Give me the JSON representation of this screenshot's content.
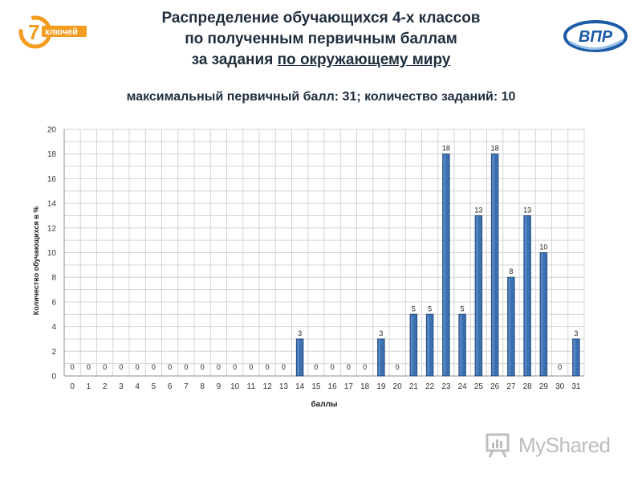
{
  "header": {
    "title_lines": [
      "Распределение обучающихся 4-х классов",
      "по полученным первичным баллам"
    ],
    "title_line3_prefix": "за задания ",
    "title_line3_underlined": "по окружающему миру",
    "subtitle": "максимальный первичный балл: 31; количество заданий: 10"
  },
  "logos": {
    "left_text": "ключей",
    "left_number": "7",
    "right_text": "ВПР",
    "watermark_text": "MyShared"
  },
  "colors": {
    "bar": "#3a6fb0",
    "bar_dark": "#2a4f80",
    "grid": "#d4d4d4",
    "logo_orange": "#f39c1f",
    "logo_blue": "#1b5aa6"
  },
  "chart_data": {
    "type": "bar",
    "xlabel": "баллы",
    "ylabel": "Количество обучающихся в %",
    "ylim": [
      0,
      20
    ],
    "ytick_step": 2,
    "grid": true,
    "categories": [
      "0",
      "1",
      "2",
      "3",
      "4",
      "5",
      "6",
      "7",
      "8",
      "9",
      "10",
      "11",
      "12",
      "13",
      "14",
      "15",
      "16",
      "17",
      "18",
      "19",
      "20",
      "21",
      "22",
      "23",
      "24",
      "25",
      "26",
      "27",
      "28",
      "29",
      "30",
      "31"
    ],
    "values": [
      0,
      0,
      0,
      0,
      0,
      0,
      0,
      0,
      0,
      0,
      0,
      0,
      0,
      0,
      3,
      0,
      0,
      0,
      0,
      3,
      0,
      5,
      5,
      18,
      5,
      13,
      18,
      8,
      13,
      10,
      0,
      3
    ]
  }
}
